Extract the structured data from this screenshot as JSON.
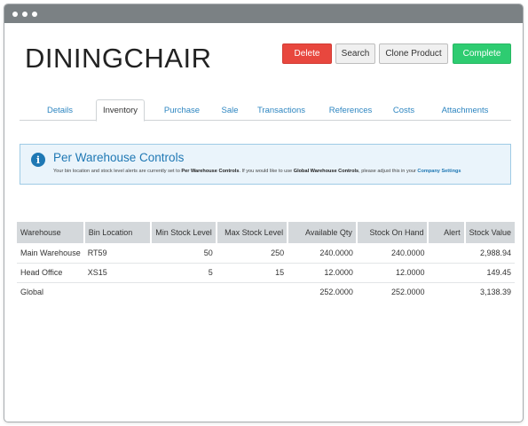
{
  "product": {
    "title": "DININGCHAIR"
  },
  "actions": {
    "delete": "Delete",
    "search": "Search",
    "clone": "Clone Product",
    "complete": "Complete"
  },
  "tabs": [
    {
      "label": "Details"
    },
    {
      "label": "Inventory",
      "active": true
    },
    {
      "label": "Purchase"
    },
    {
      "label": "Sale"
    },
    {
      "label": "Transactions"
    },
    {
      "label": "References"
    },
    {
      "label": "Costs"
    },
    {
      "label": "Attachments"
    }
  ],
  "info": {
    "title": "Per Warehouse Controls",
    "text_1": "Your bin location and stock level alerts are currently set to ",
    "bold_1": "Per Warehouse Controls",
    "text_2": ". If you would like to use ",
    "bold_2": "Global Warehouse Controls",
    "text_3": ", please adjust this in your ",
    "link": "Company Settings"
  },
  "inventory": {
    "columns": [
      "Warehouse",
      "Bin Location",
      "Min Stock Level",
      "Max Stock Level",
      "Available Qty",
      "Stock On Hand",
      "Alert",
      "Stock Value"
    ],
    "rows": [
      {
        "warehouse": "Main Warehouse",
        "bin": "RT59",
        "min": "50",
        "max": "250",
        "available": "240.0000",
        "on_hand": "240.0000",
        "alert": "",
        "value": "2,988.94"
      },
      {
        "warehouse": "Head Office",
        "bin": "XS15",
        "min": "5",
        "max": "15",
        "available": "12.0000",
        "on_hand": "12.0000",
        "alert": "",
        "value": "149.45"
      },
      {
        "warehouse": "Global",
        "bin": "",
        "min": "",
        "max": "",
        "available": "252.0000",
        "on_hand": "252.0000",
        "alert": "",
        "value": "3,138.39"
      }
    ]
  },
  "colors": {
    "delete": "#e8473e",
    "complete": "#2ecc71",
    "link": "#1f78b4",
    "header": "#d4d8db"
  }
}
